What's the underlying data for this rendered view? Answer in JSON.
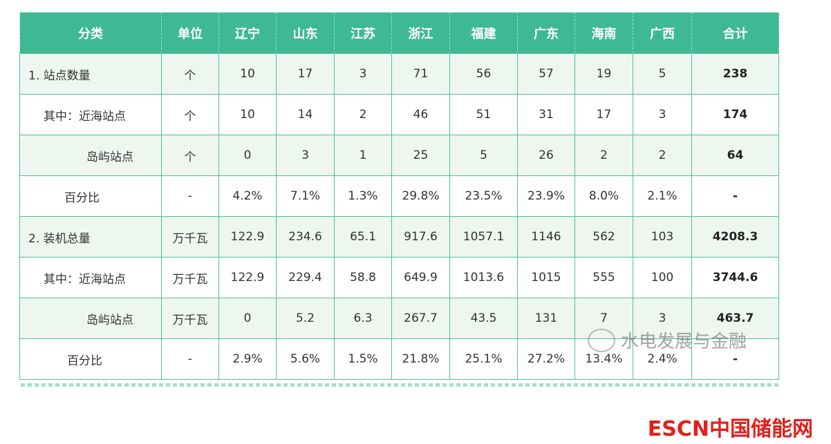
{
  "table": {
    "header": [
      "分类",
      "单位",
      "辽宁",
      "山东",
      "江苏",
      "浙江",
      "福建",
      "广东",
      "海南",
      "广西",
      "合计"
    ],
    "rows": [
      [
        "1. 站点数量",
        "个",
        "10",
        "17",
        "3",
        "71",
        "56",
        "57",
        "19",
        "5",
        "238"
      ],
      [
        "其中：近海站点",
        "个",
        "10",
        "14",
        "2",
        "46",
        "51",
        "31",
        "17",
        "3",
        "174"
      ],
      [
        "岛屿站点",
        "个",
        "0",
        "3",
        "1",
        "25",
        "5",
        "26",
        "2",
        "2",
        "64"
      ],
      [
        "百分比",
        "-",
        "4.2%",
        "7.1%",
        "1.3%",
        "29.8%",
        "23.5%",
        "23.9%",
        "8.0%",
        "2.1%",
        "-"
      ],
      [
        "2. 装机总量",
        "万千瓦",
        "122.9",
        "234.6",
        "65.1",
        "917.6",
        "1057.1",
        "1146",
        "562",
        "103",
        "4208.3"
      ],
      [
        "其中：近海站点",
        "万千瓦",
        "122.9",
        "229.4",
        "58.8",
        "649.9",
        "1013.6",
        "1015",
        "555",
        "100",
        "3744.6"
      ],
      [
        "岛屿站点",
        "万千瓦",
        "0",
        "5.2",
        "6.3",
        "267.7",
        "43.5",
        "131",
        "7",
        "3",
        "463.7"
      ],
      [
        "百分比",
        "-",
        "2.9%",
        "5.6%",
        "1.5%",
        "21.8%",
        "25.1%",
        "27.2%",
        "13.4%",
        "2.4%",
        "-"
      ]
    ]
  },
  "watermark": "水电发展与金融",
  "logo": {
    "brand": "ESCN",
    "name": "中国储能网"
  }
}
